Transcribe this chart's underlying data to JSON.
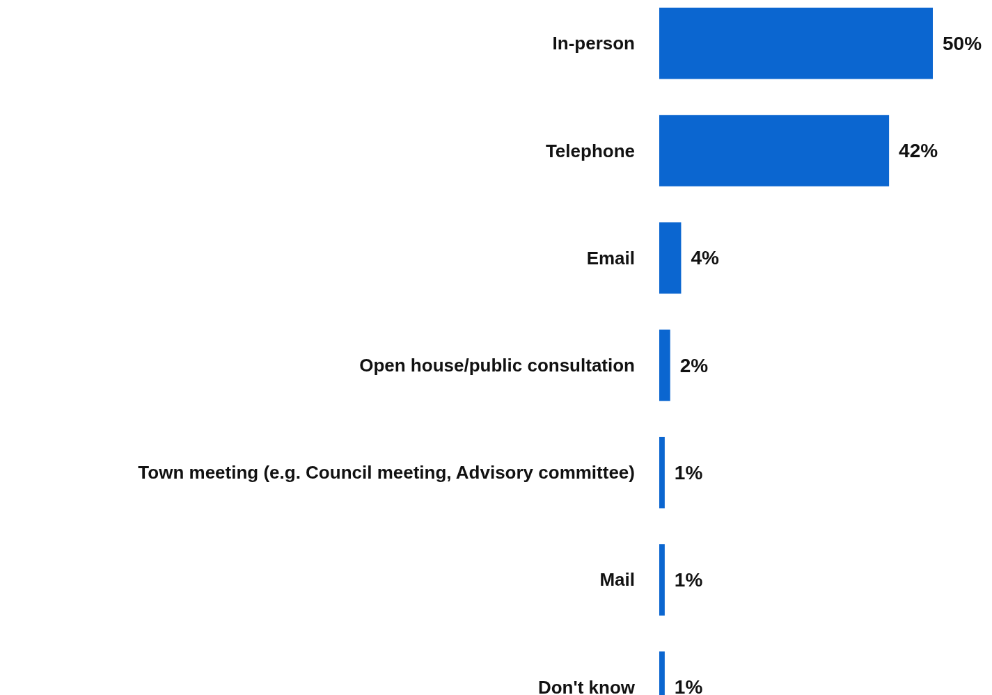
{
  "chart_data": {
    "type": "bar",
    "orientation": "horizontal",
    "categories": [
      "In-person",
      "Telephone",
      "Email",
      "Open house/public consultation",
      "Town meeting (e.g. Council meeting, Advisory committee)",
      "Mail",
      "Don't know"
    ],
    "values": [
      50,
      42,
      4,
      2,
      1,
      1,
      1
    ],
    "value_labels": [
      "50%",
      "42%",
      "4%",
      "2%",
      "1%",
      "1%",
      "1%"
    ],
    "color": "#0b66d0"
  }
}
